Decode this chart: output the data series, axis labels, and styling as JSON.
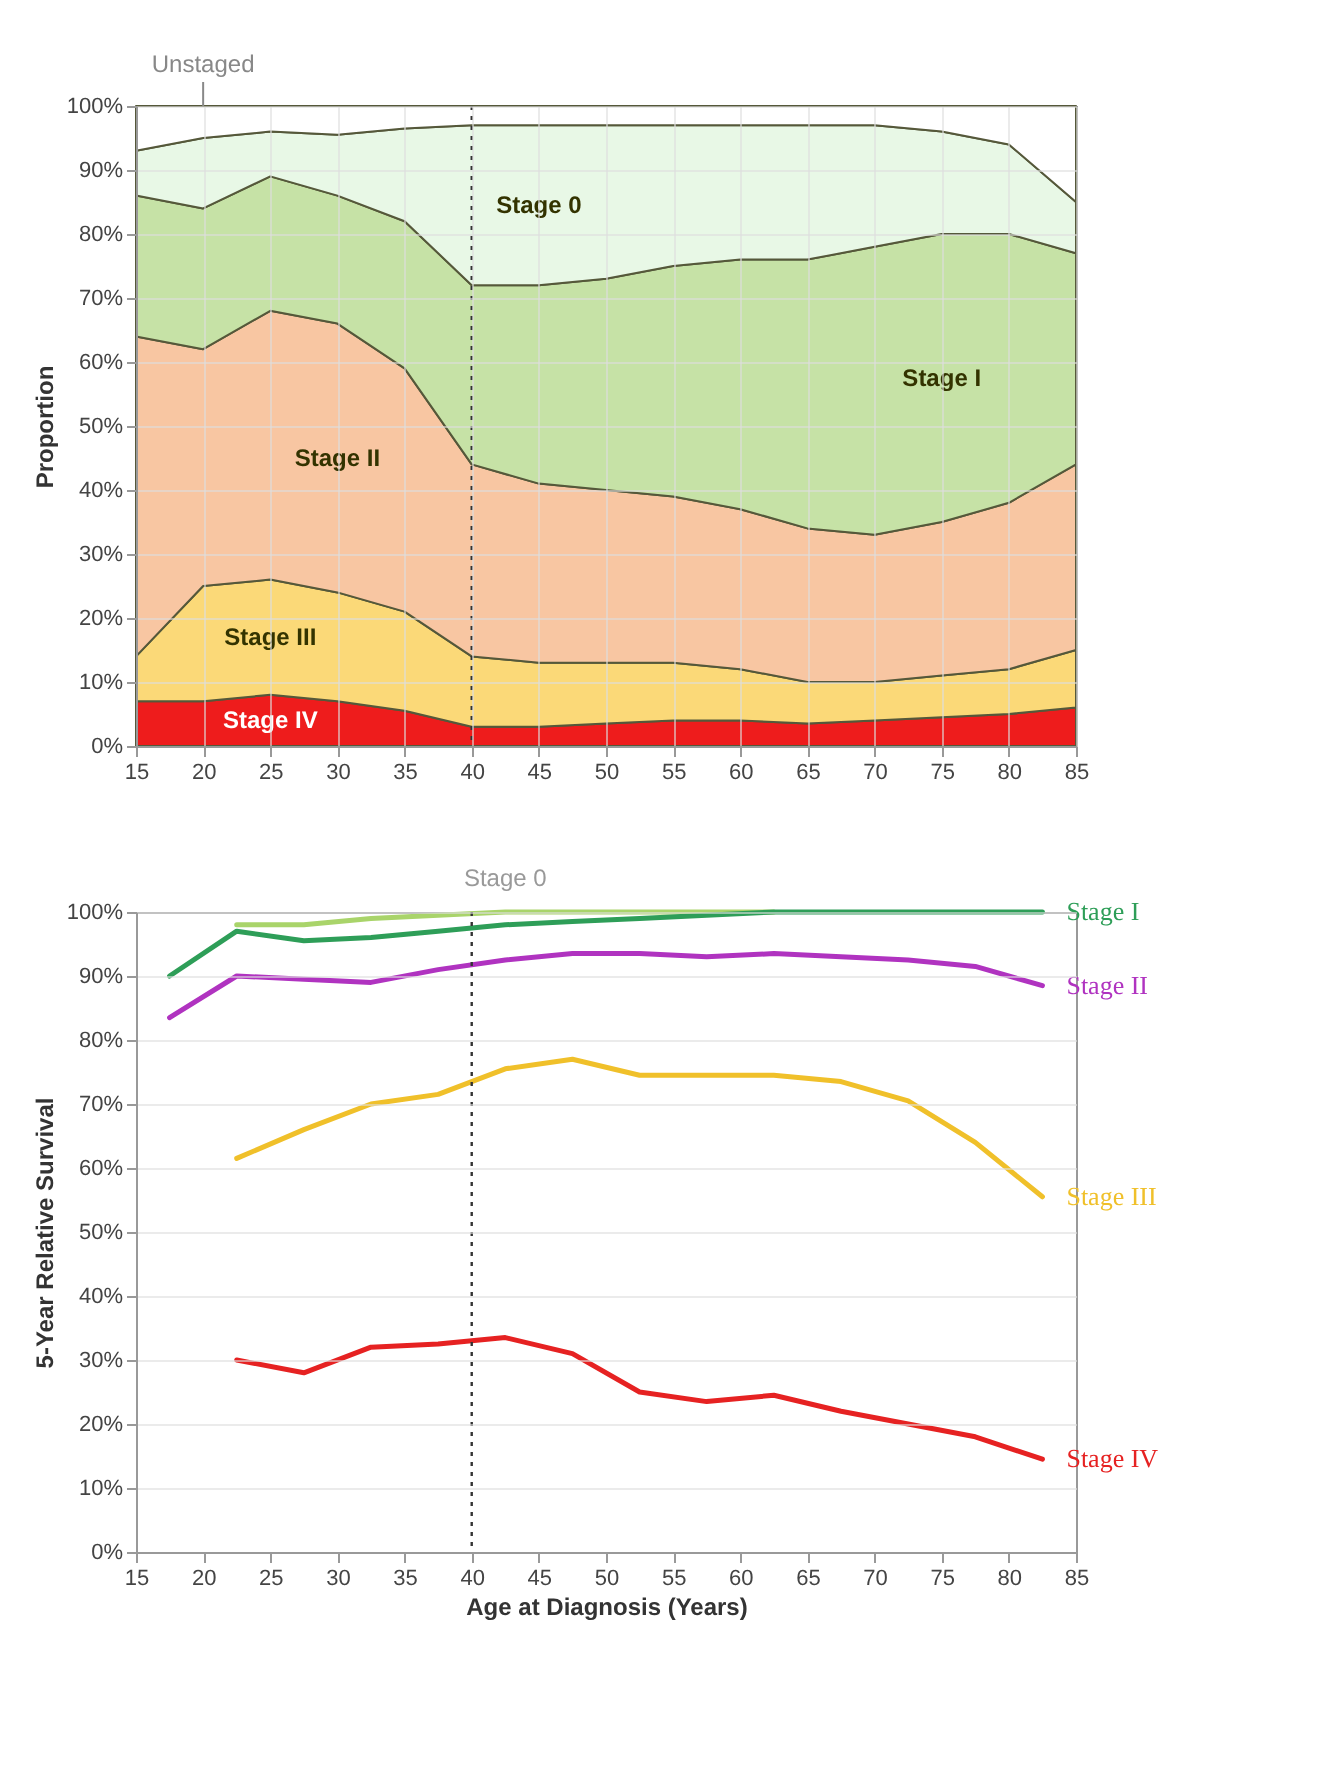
{
  "chart_data": [
    {
      "type": "area",
      "stacked": true,
      "ylabel": "Proportion",
      "x": [
        15,
        20,
        25,
        30,
        35,
        40,
        45,
        50,
        55,
        60,
        65,
        70,
        75,
        80,
        85
      ],
      "series": [
        {
          "name": "Stage IV",
          "color": "#ee1c1c",
          "values": [
            7,
            7,
            8,
            7,
            5.5,
            3,
            3,
            3.5,
            4,
            4,
            3.5,
            4,
            4.5,
            5,
            6
          ]
        },
        {
          "name": "Stage III",
          "color": "#fbd978",
          "values": [
            7,
            18,
            18,
            17,
            15.5,
            11,
            10,
            9.5,
            9,
            8,
            6.5,
            6,
            6.5,
            7,
            9
          ]
        },
        {
          "name": "Stage II",
          "color": "#f8c6a2",
          "values": [
            50,
            37,
            42,
            42,
            38,
            30,
            28,
            27,
            26,
            25,
            24,
            23,
            24,
            26,
            29
          ]
        },
        {
          "name": "Stage I",
          "color": "#c6e2a6",
          "values": [
            22,
            22,
            21,
            20,
            23,
            28,
            31,
            33,
            36,
            39,
            42,
            45,
            45,
            42,
            33
          ]
        },
        {
          "name": "Stage 0",
          "color": "#e8f8e6",
          "values": [
            7,
            11,
            7,
            9.5,
            14.5,
            25,
            25,
            24,
            22,
            21,
            21,
            19,
            16,
            14,
            8
          ]
        },
        {
          "name": "Unstaged",
          "color": "#ffffff",
          "values": [
            7,
            5,
            4,
            4.5,
            3.5,
            3,
            3,
            3,
            3,
            3,
            3,
            3,
            4,
            6,
            15
          ]
        }
      ],
      "xlim": [
        15,
        85
      ],
      "xticks": [
        15,
        20,
        25,
        30,
        35,
        40,
        45,
        50,
        55,
        60,
        65,
        70,
        75,
        80,
        85
      ],
      "ylim": [
        0,
        100
      ],
      "yticks": [
        {
          "value": 0,
          "label": "0%"
        },
        {
          "value": 10,
          "label": "10%"
        },
        {
          "value": 20,
          "label": "20%"
        },
        {
          "value": 30,
          "label": "30%"
        },
        {
          "value": 40,
          "label": "40%"
        },
        {
          "value": 50,
          "label": "50%"
        },
        {
          "value": 60,
          "label": "60%"
        },
        {
          "value": 70,
          "label": "70%"
        },
        {
          "value": 80,
          "label": "80%"
        },
        {
          "value": 90,
          "label": "90%"
        },
        {
          "value": 100,
          "label": "100%"
        }
      ],
      "grid": true,
      "ref_lines": [
        {
          "axis": "x",
          "value": 40,
          "line_style": "dotted",
          "color": "#333333"
        }
      ]
    },
    {
      "type": "line",
      "xlabel": "Age at Diagnosis (Years)",
      "ylabel": "5-Year Relative Survival",
      "x": [
        17.5,
        22.5,
        27.5,
        32.5,
        37.5,
        42.5,
        47.5,
        52.5,
        57.5,
        62.5,
        67.5,
        72.5,
        77.5,
        82.5
      ],
      "series": [
        {
          "name": "Stage 0",
          "color": "#a9d46a",
          "values": [
            null,
            98,
            98,
            99,
            99.5,
            100,
            100,
            100,
            100,
            100,
            null,
            null,
            null,
            null
          ]
        },
        {
          "name": "Stage I",
          "color": "#2e9e58",
          "values": [
            90,
            97,
            95.5,
            96,
            97,
            98,
            98.5,
            99,
            99.5,
            100,
            100,
            100,
            100,
            100
          ]
        },
        {
          "name": "Stage II",
          "color": "#b033c0",
          "values": [
            83.5,
            90,
            89.5,
            89,
            91,
            92.5,
            93.5,
            93.5,
            93,
            93.5,
            93,
            92.5,
            91.5,
            88.5
          ]
        },
        {
          "name": "Stage III",
          "color": "#f0c02a",
          "values": [
            null,
            61.5,
            66,
            70,
            71.5,
            75.5,
            77,
            74.5,
            74.5,
            74.5,
            73.5,
            70.5,
            64,
            55.5
          ]
        },
        {
          "name": "Stage IV",
          "color": "#e62222",
          "values": [
            null,
            30,
            28,
            32,
            32.5,
            33.5,
            31,
            25,
            23.5,
            24.5,
            22,
            20,
            18,
            14.5
          ]
        }
      ],
      "xlim": [
        15,
        85
      ],
      "xticks": [
        15,
        20,
        25,
        30,
        35,
        40,
        45,
        50,
        55,
        60,
        65,
        70,
        75,
        80,
        85
      ],
      "ylim": [
        0,
        100
      ],
      "yticks": [
        {
          "value": 0,
          "label": "0%"
        },
        {
          "value": 10,
          "label": "10%"
        },
        {
          "value": 20,
          "label": "20%"
        },
        {
          "value": 30,
          "label": "30%"
        },
        {
          "value": 40,
          "label": "40%"
        },
        {
          "value": 50,
          "label": "50%"
        },
        {
          "value": 60,
          "label": "60%"
        },
        {
          "value": 70,
          "label": "70%"
        },
        {
          "value": 80,
          "label": "80%"
        },
        {
          "value": 90,
          "label": "90%"
        },
        {
          "value": 100,
          "label": "100%"
        }
      ],
      "grid": "y",
      "line_style": "solid",
      "marker": "none",
      "ref_lines": [
        {
          "axis": "x",
          "value": 40,
          "line_style": "dotted",
          "color": "#333333"
        }
      ]
    }
  ]
}
